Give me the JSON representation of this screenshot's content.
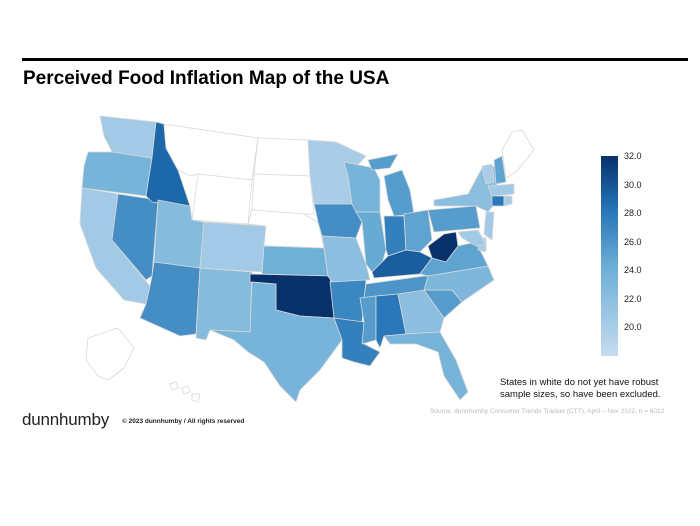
{
  "title": "Perceived Food Inflation Map of the USA",
  "legend": {
    "ticks": [
      "32.0",
      "30.0",
      "28.0",
      "26.0",
      "24.0",
      "22.0",
      "20.0"
    ],
    "min": 18.0,
    "max": 32.0,
    "color_low": "#c6dbef",
    "color_high": "#08306b"
  },
  "note": "States in white do not yet have robust sample sizes, so have been excluded.",
  "source": "Source: dunnhumby Consumer Trends Tracker (CTT), April – Nov 2022, n = 6012",
  "logo_text": "dunnhumby",
  "copyright": "© 2023 dunnhumby / All rights reserved",
  "colors": {
    "excluded": "#ffffff",
    "border": "#d8d8d8"
  },
  "states": [
    {
      "code": "WA",
      "value": 20.5
    },
    {
      "code": "OR",
      "value": 23.5
    },
    {
      "code": "CA",
      "value": 20.5
    },
    {
      "code": "NV",
      "value": 26.5
    },
    {
      "code": "ID",
      "value": 29.0
    },
    {
      "code": "MT",
      "value": null
    },
    {
      "code": "WY",
      "value": null
    },
    {
      "code": "UT",
      "value": 22.5
    },
    {
      "code": "AZ",
      "value": 26.5
    },
    {
      "code": "CO",
      "value": 20.5
    },
    {
      "code": "NM",
      "value": 22.5
    },
    {
      "code": "ND",
      "value": null
    },
    {
      "code": "SD",
      "value": null
    },
    {
      "code": "NE",
      "value": null
    },
    {
      "code": "KS",
      "value": 24.0
    },
    {
      "code": "OK",
      "value": 32.0
    },
    {
      "code": "TX",
      "value": 23.5
    },
    {
      "code": "MN",
      "value": 20.0
    },
    {
      "code": "IA",
      "value": 26.5
    },
    {
      "code": "MO",
      "value": 22.0
    },
    {
      "code": "AR",
      "value": 27.0
    },
    {
      "code": "LA",
      "value": 27.5
    },
    {
      "code": "WI",
      "value": 23.5
    },
    {
      "code": "IL",
      "value": 24.5
    },
    {
      "code": "MI",
      "value": 25.5
    },
    {
      "code": "IN",
      "value": 27.5
    },
    {
      "code": "OH",
      "value": 25.0
    },
    {
      "code": "KY",
      "value": 29.5
    },
    {
      "code": "TN",
      "value": 26.0
    },
    {
      "code": "MS",
      "value": 25.5
    },
    {
      "code": "AL",
      "value": 28.0
    },
    {
      "code": "GA",
      "value": 22.0
    },
    {
      "code": "FL",
      "value": 23.5
    },
    {
      "code": "SC",
      "value": 25.5
    },
    {
      "code": "NC",
      "value": 23.0
    },
    {
      "code": "VA",
      "value": 25.0
    },
    {
      "code": "WV",
      "value": 32.0
    },
    {
      "code": "PA",
      "value": 25.5
    },
    {
      "code": "NY",
      "value": 22.0
    },
    {
      "code": "VT",
      "value": 20.0
    },
    {
      "code": "NH",
      "value": 25.0
    },
    {
      "code": "ME",
      "value": null
    },
    {
      "code": "MA",
      "value": 20.5
    },
    {
      "code": "CT",
      "value": 28.0
    },
    {
      "code": "RI",
      "value": 20.0
    },
    {
      "code": "NJ",
      "value": 20.5
    },
    {
      "code": "DE",
      "value": 20.0
    },
    {
      "code": "MD",
      "value": 20.5
    },
    {
      "code": "AK",
      "value": null
    },
    {
      "code": "HI",
      "value": null
    }
  ]
}
